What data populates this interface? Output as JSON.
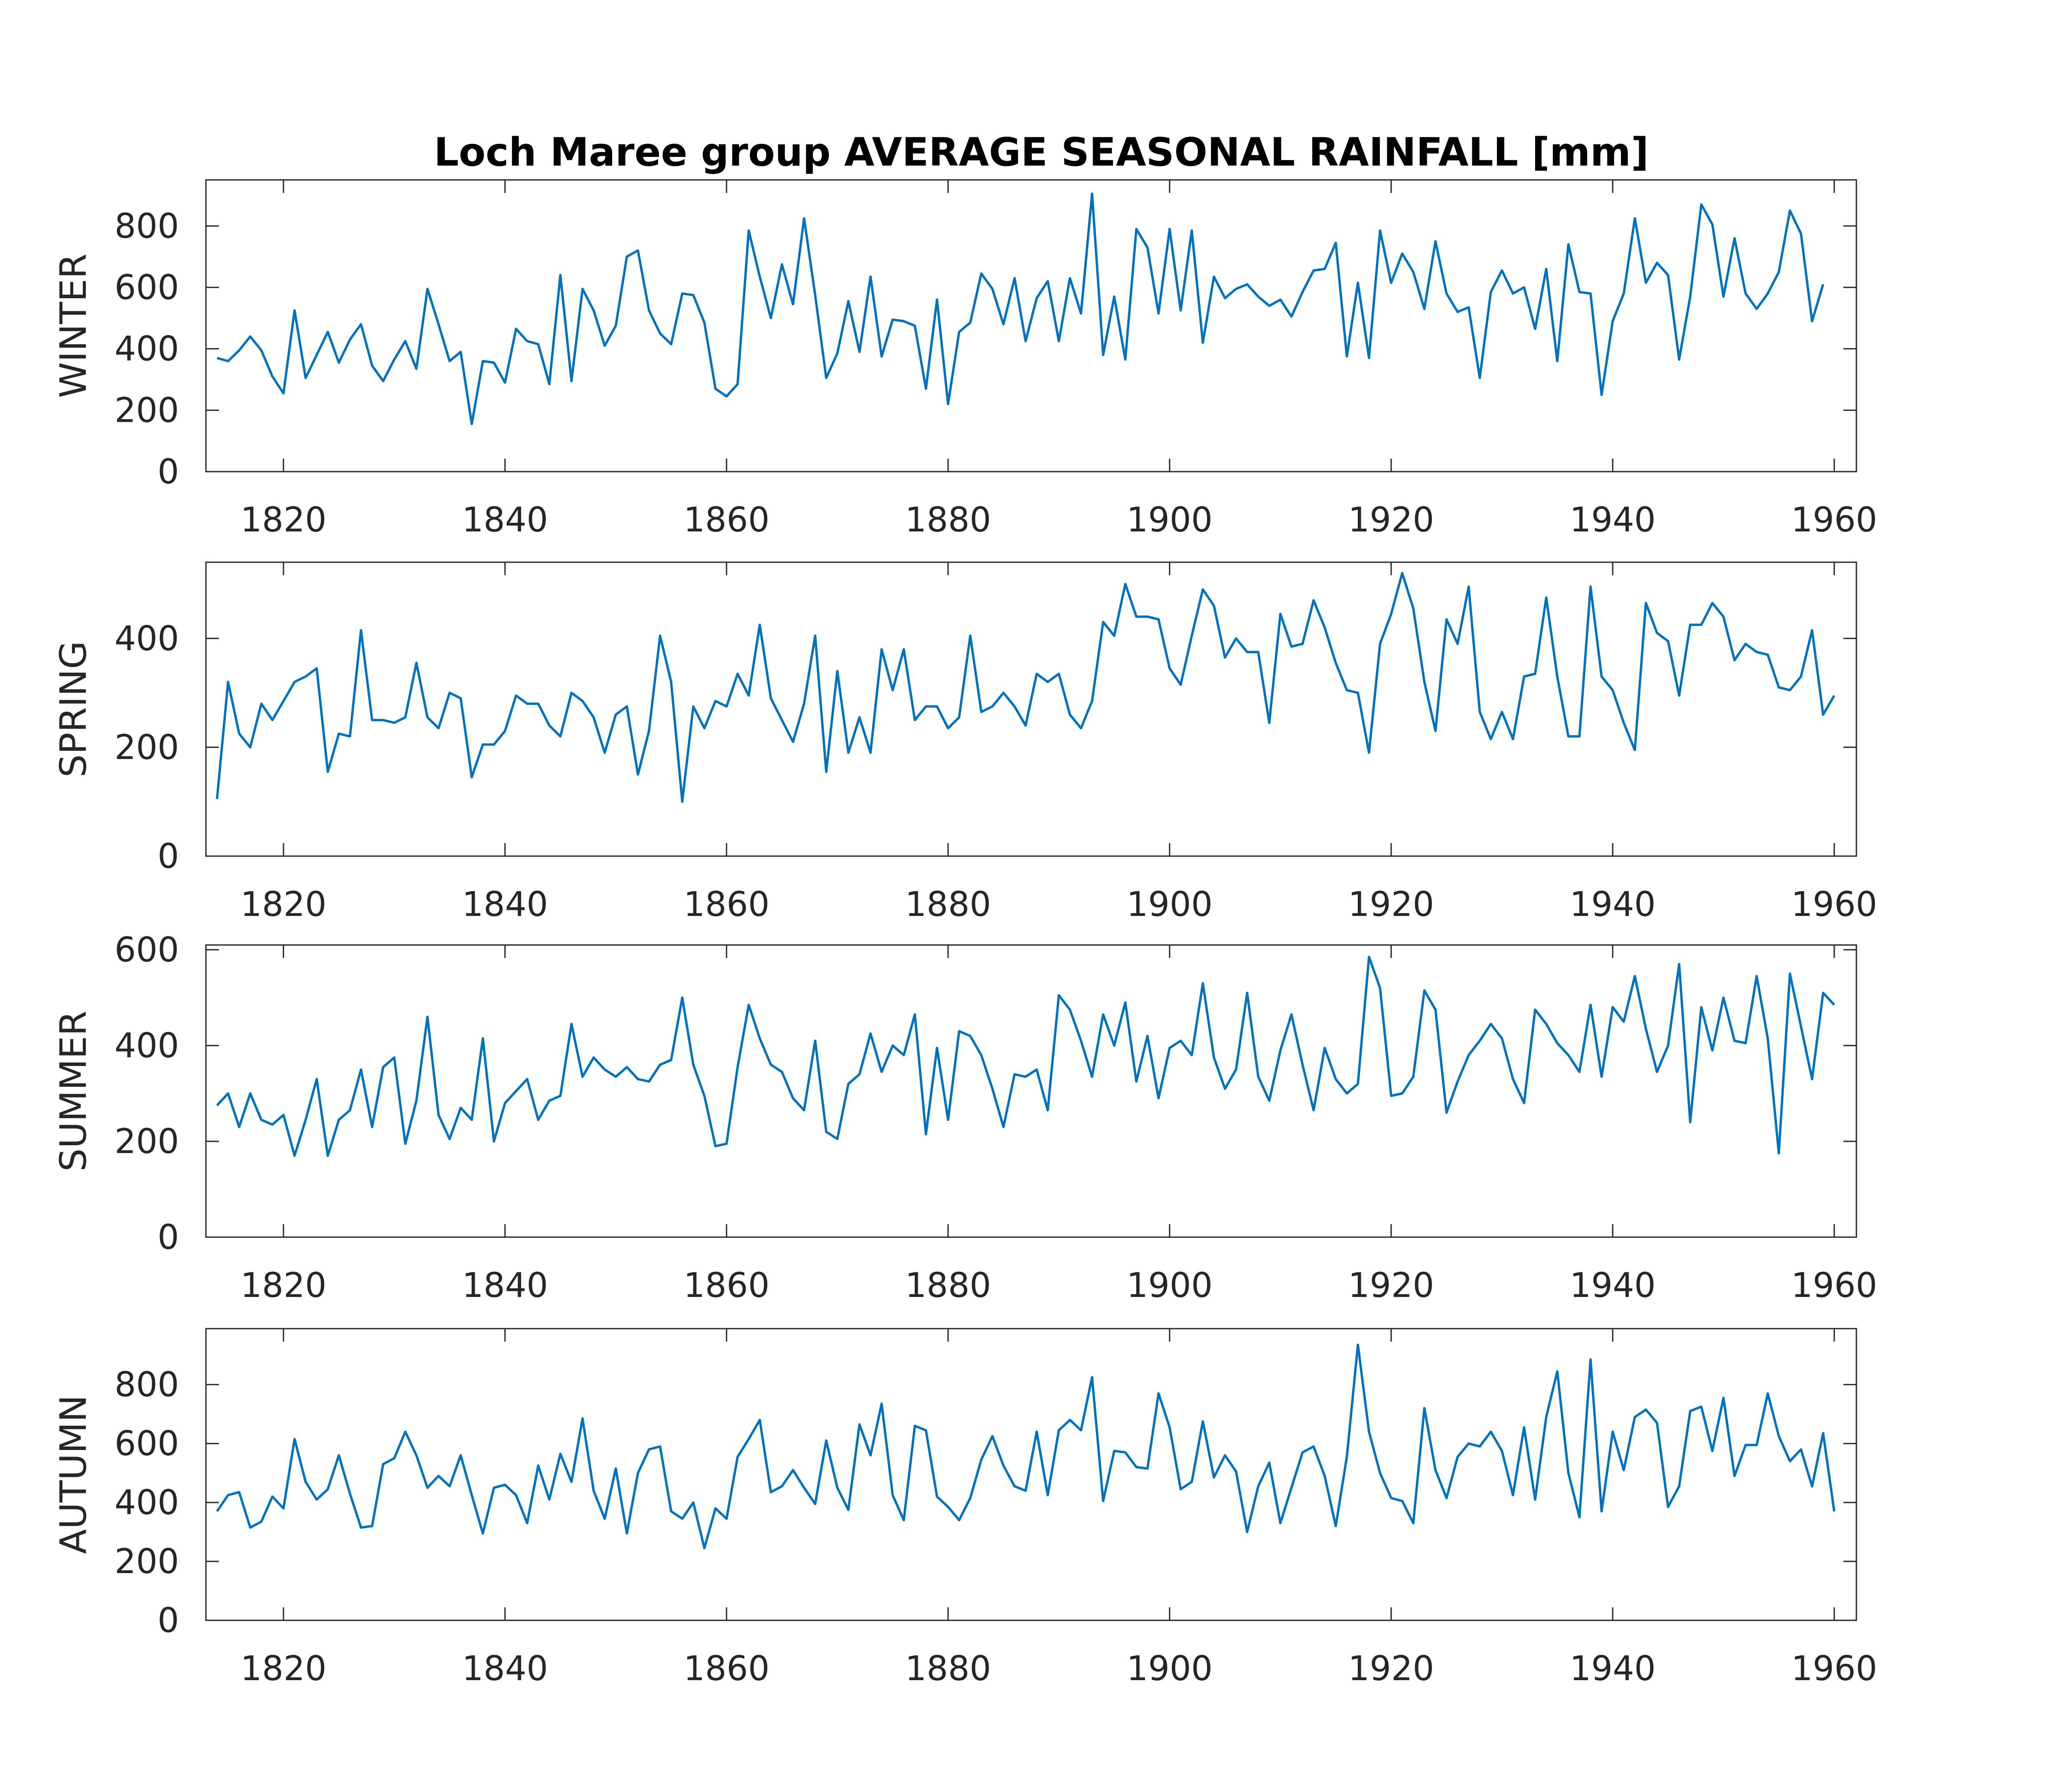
{
  "chart_data": {
    "type": "line",
    "title": "Loch Maree group AVERAGE SEASONAL RAINFALL [mm]",
    "line_color": "#0072BD",
    "xlim": [
      1813,
      1962
    ],
    "xticks": [
      1820,
      1840,
      1860,
      1880,
      1900,
      1920,
      1940,
      1960
    ],
    "x_start": 1814,
    "panels": [
      {
        "ylabel": "WINTER",
        "ylim": [
          0,
          950
        ],
        "yticks": [
          0,
          200,
          400,
          600,
          800
        ],
        "values": [
          370,
          360,
          395,
          440,
          395,
          310,
          255,
          525,
          305,
          380,
          455,
          355,
          430,
          480,
          345,
          295,
          365,
          425,
          335,
          595,
          480,
          360,
          390,
          155,
          360,
          355,
          290,
          465,
          425,
          415,
          285,
          640,
          295,
          595,
          525,
          410,
          475,
          700,
          720,
          525,
          450,
          415,
          580,
          575,
          485,
          270,
          245,
          285,
          785,
          635,
          500,
          675,
          545,
          825,
          575,
          305,
          385,
          555,
          390,
          635,
          375,
          495,
          490,
          475,
          270,
          560,
          220,
          455,
          485,
          645,
          595,
          480,
          630,
          425,
          565,
          620,
          425,
          630,
          515,
          905,
          380,
          570,
          365,
          790,
          730,
          515,
          790,
          525,
          785,
          420,
          635,
          565,
          595,
          610,
          570,
          540,
          560,
          505,
          585,
          655,
          660,
          745,
          375,
          615,
          370,
          785,
          615,
          710,
          650,
          530,
          750,
          580,
          520,
          535,
          305,
          585,
          655,
          580,
          600,
          465,
          660,
          360,
          740,
          585,
          580,
          250,
          490,
          580,
          825,
          615,
          680,
          640,
          365,
          570,
          870,
          805,
          570,
          760,
          580,
          530,
          580,
          650,
          850,
          775,
          490,
          610
        ]
      },
      {
        "ylabel": "SPRING",
        "ylim": [
          0,
          540
        ],
        "yticks": [
          0,
          200,
          400
        ],
        "values": [
          105,
          320,
          225,
          200,
          280,
          250,
          285,
          320,
          330,
          345,
          155,
          225,
          220,
          415,
          250,
          250,
          245,
          255,
          355,
          255,
          235,
          300,
          290,
          145,
          205,
          205,
          230,
          295,
          280,
          280,
          240,
          220,
          300,
          285,
          255,
          190,
          260,
          275,
          150,
          230,
          405,
          320,
          100,
          275,
          235,
          285,
          275,
          335,
          295,
          425,
          290,
          250,
          210,
          280,
          405,
          155,
          340,
          190,
          255,
          190,
          380,
          305,
          380,
          250,
          275,
          275,
          235,
          255,
          405,
          265,
          275,
          300,
          275,
          240,
          335,
          320,
          335,
          260,
          235,
          285,
          430,
          405,
          500,
          440,
          440,
          435,
          345,
          315,
          405,
          490,
          460,
          365,
          400,
          375,
          375,
          245,
          445,
          385,
          390,
          470,
          420,
          355,
          305,
          300,
          190,
          390,
          445,
          520,
          455,
          320,
          230,
          435,
          390,
          495,
          265,
          215,
          265,
          215,
          330,
          335,
          475,
          330,
          220,
          220,
          495,
          330,
          305,
          245,
          195,
          465,
          410,
          395,
          295,
          425,
          425,
          465,
          440,
          360,
          390,
          375,
          370,
          310,
          305,
          330,
          415,
          260,
          295
        ]
      },
      {
        "ylabel": "SUMMER",
        "ylim": [
          0,
          610
        ],
        "yticks": [
          0,
          200,
          400,
          600
        ],
        "values": [
          275,
          300,
          230,
          300,
          245,
          235,
          255,
          170,
          245,
          330,
          170,
          245,
          265,
          350,
          230,
          355,
          375,
          195,
          285,
          460,
          255,
          205,
          270,
          245,
          415,
          200,
          280,
          305,
          330,
          245,
          285,
          295,
          445,
          335,
          375,
          350,
          335,
          355,
          330,
          325,
          360,
          370,
          500,
          360,
          295,
          190,
          195,
          355,
          485,
          415,
          360,
          345,
          290,
          265,
          410,
          220,
          205,
          320,
          340,
          425,
          345,
          400,
          380,
          465,
          215,
          395,
          245,
          430,
          420,
          380,
          310,
          230,
          340,
          335,
          350,
          265,
          505,
          475,
          410,
          335,
          465,
          400,
          490,
          325,
          420,
          290,
          395,
          410,
          380,
          530,
          375,
          310,
          350,
          510,
          335,
          285,
          390,
          465,
          360,
          265,
          395,
          330,
          300,
          320,
          585,
          520,
          295,
          300,
          335,
          515,
          475,
          260,
          325,
          380,
          410,
          445,
          415,
          330,
          280,
          475,
          445,
          405,
          380,
          345,
          485,
          335,
          480,
          450,
          545,
          435,
          345,
          400,
          570,
          240,
          480,
          390,
          500,
          410,
          405,
          545,
          415,
          175,
          550,
          440,
          330,
          510,
          485
        ]
      },
      {
        "ylabel": "AUTUMN",
        "ylim": [
          0,
          990
        ],
        "yticks": [
          0,
          200,
          400,
          600,
          800
        ],
        "values": [
          370,
          425,
          435,
          315,
          335,
          420,
          380,
          615,
          470,
          410,
          445,
          560,
          430,
          315,
          320,
          530,
          550,
          640,
          560,
          450,
          490,
          455,
          560,
          425,
          295,
          450,
          460,
          425,
          330,
          525,
          410,
          565,
          470,
          685,
          440,
          345,
          515,
          295,
          500,
          580,
          590,
          370,
          345,
          400,
          245,
          380,
          345,
          555,
          615,
          680,
          435,
          455,
          510,
          450,
          395,
          610,
          450,
          375,
          665,
          560,
          735,
          425,
          340,
          660,
          645,
          420,
          385,
          340,
          415,
          545,
          625,
          525,
          455,
          440,
          640,
          425,
          645,
          680,
          645,
          825,
          405,
          575,
          570,
          520,
          515,
          770,
          655,
          445,
          470,
          675,
          485,
          560,
          505,
          300,
          455,
          535,
          330,
          450,
          570,
          590,
          490,
          320,
          555,
          935,
          640,
          500,
          415,
          405,
          330,
          720,
          510,
          415,
          555,
          600,
          590,
          640,
          575,
          425,
          655,
          410,
          690,
          845,
          500,
          350,
          885,
          370,
          640,
          510,
          690,
          715,
          670,
          385,
          455,
          710,
          725,
          575,
          755,
          490,
          595,
          595,
          770,
          625,
          540,
          580,
          455,
          635,
          370
        ]
      }
    ]
  }
}
